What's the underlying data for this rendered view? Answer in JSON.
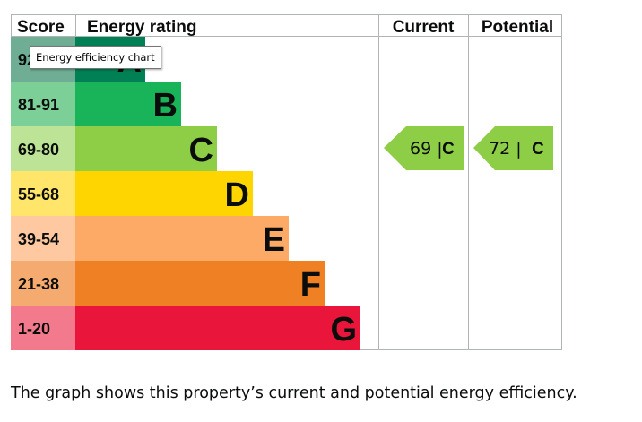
{
  "chart_data": {
    "type": "bar",
    "header": {
      "score": "Score",
      "rating": "Energy rating",
      "current": "Current",
      "potential": "Potential"
    },
    "bands": [
      {
        "score": "92+",
        "letter": "A",
        "color": "#008054",
        "score_bg": "#6fad95"
      },
      {
        "score": "81-91",
        "letter": "B",
        "color": "#19b459",
        "score_bg": "#7dcf98"
      },
      {
        "score": "69-80",
        "letter": "C",
        "color": "#8dce46",
        "score_bg": "#bde396"
      },
      {
        "score": "55-68",
        "letter": "D",
        "color": "#ffd500",
        "score_bg": "#ffe66a"
      },
      {
        "score": "39-54",
        "letter": "E",
        "color": "#fcaa65",
        "score_bg": "#fec9a0"
      },
      {
        "score": "21-38",
        "letter": "F",
        "color": "#ef8023",
        "score_bg": "#f5ab6f"
      },
      {
        "score": "1-20",
        "letter": "G",
        "color": "#e9153b",
        "score_bg": "#f27a8c"
      }
    ],
    "current": {
      "value": 69,
      "letter": "C",
      "label": "69 |",
      "color": "#8dce46"
    },
    "potential": {
      "value": 72,
      "letter": "C",
      "label": "72 |",
      "color": "#8dce46"
    }
  },
  "tooltip": "Energy efficiency chart",
  "caption": "The graph shows this property’s current and potential energy efficiency."
}
